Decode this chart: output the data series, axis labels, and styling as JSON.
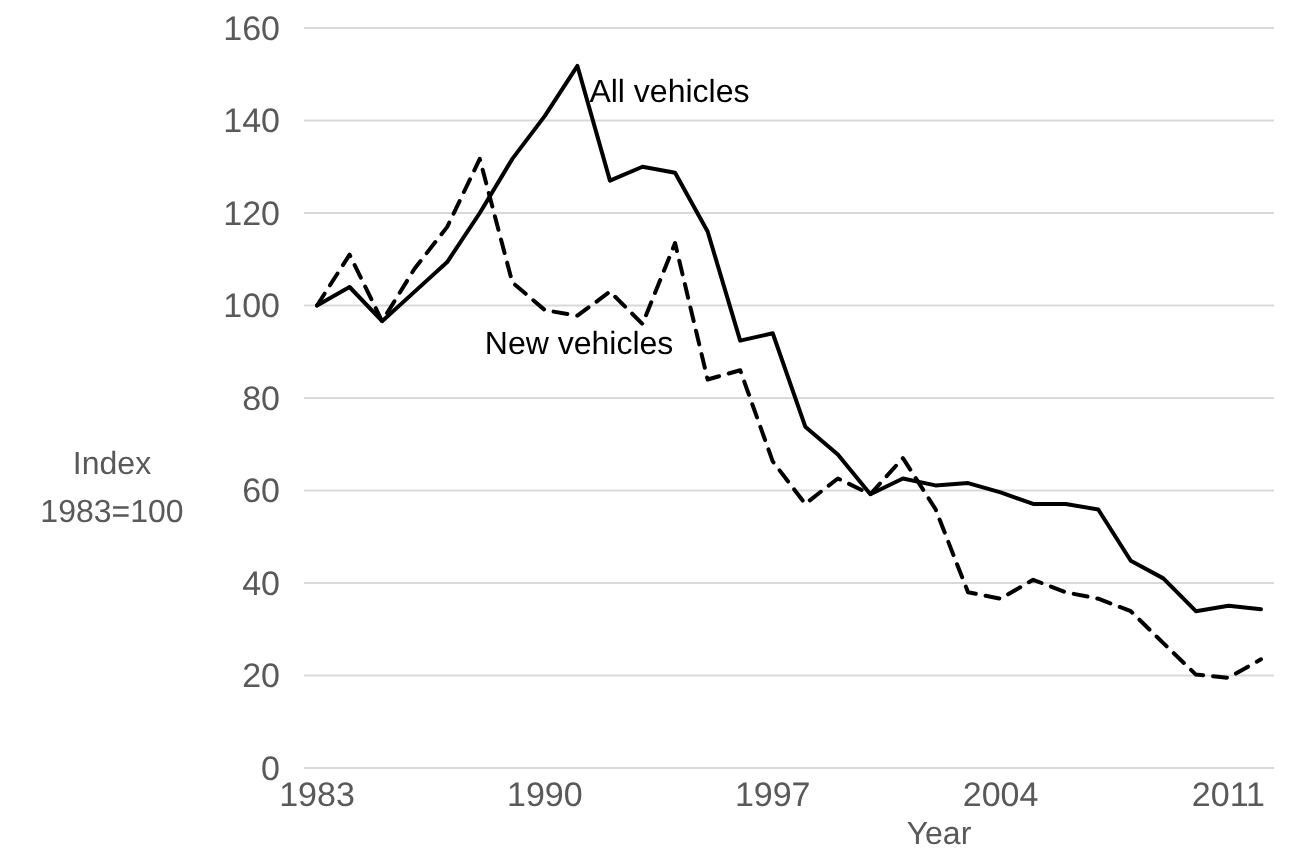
{
  "chart_data": {
    "type": "line",
    "xlabel": "Year",
    "ylabel": "Index\n1983=100",
    "x": [
      1983,
      1984,
      1985,
      1986,
      1987,
      1988,
      1989,
      1990,
      1991,
      1992,
      1993,
      1994,
      1995,
      1996,
      1997,
      1998,
      1999,
      2000,
      2001,
      2002,
      2003,
      2004,
      2005,
      2006,
      2007,
      2008,
      2009,
      2010,
      2011,
      2012
    ],
    "series": [
      {
        "name": "All vehicles",
        "color": "#000000",
        "line_style": "solid",
        "values": [
          100,
          104,
          96.6,
          103,
          109.4,
          120,
          131.7,
          141,
          151.8,
          127,
          130,
          128.7,
          116,
          92.4,
          94,
          73.8,
          67.8,
          59.2,
          62.6,
          61.1,
          61.6,
          59.6,
          57.1,
          57.1,
          55.9,
          44.8,
          41,
          33.9,
          35.1,
          34.3
        ]
      },
      {
        "name": "New vehicles",
        "color": "#000000",
        "line_style": "dashed",
        "values": [
          100,
          111,
          96.6,
          108,
          117,
          131.7,
          105,
          99,
          97.8,
          103,
          96,
          113.5,
          84,
          86,
          66.3,
          57.1,
          62.6,
          59.2,
          67,
          56,
          38,
          36.6,
          40.7,
          38,
          36.6,
          33.9,
          27,
          20.2,
          19.5,
          23.5
        ]
      }
    ],
    "xlim": [
      1982.6,
      2012.4
    ],
    "xticks": [
      1983,
      1990,
      1997,
      2004,
      2011
    ],
    "ylim": [
      0,
      160
    ],
    "yticks": [
      0,
      20,
      40,
      60,
      80,
      100,
      120,
      140,
      160
    ],
    "grid": "y",
    "legend": false,
    "marker": "none"
  }
}
